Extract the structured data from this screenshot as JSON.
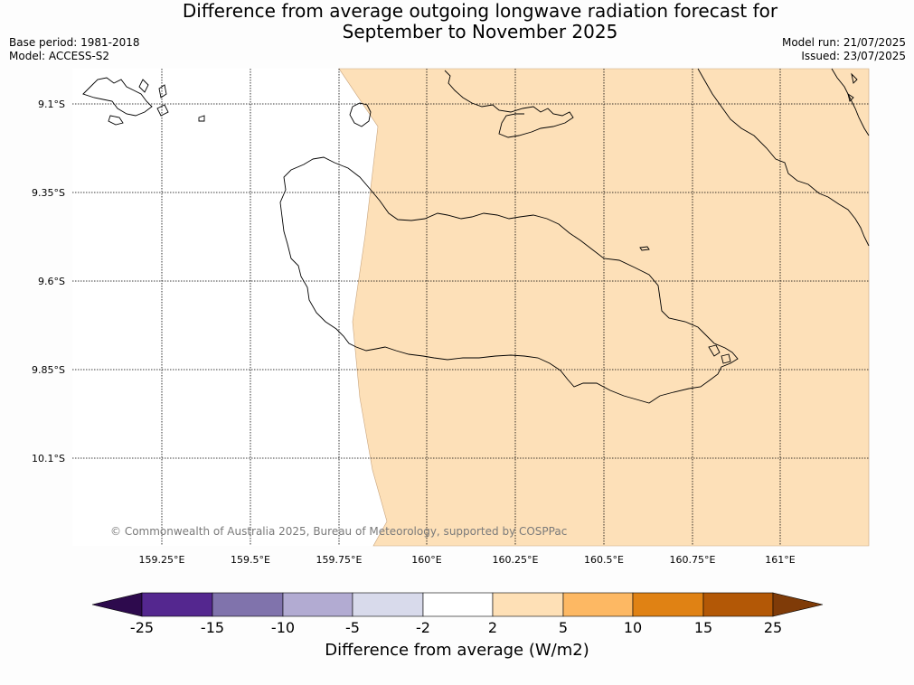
{
  "title_line1": "Difference from average outgoing longwave radiation forecast for",
  "title_line2": "September to November 2025",
  "base_period": "Base period: 1981-2018",
  "model": "Model: ACCESS-S2",
  "model_run": "Model run: 21/07/2025",
  "issued": "Issued: 23/07/2025",
  "copyright": "© Commonwealth of Australia 2025, Bureau of Meteorology, supported by COSPPac",
  "map": {
    "lat_labels": [
      "9.1°S",
      "9.35°S",
      "9.6°S",
      "9.85°S",
      "10.1°S"
    ],
    "lon_labels": [
      "159.25°E",
      "159.5°E",
      "159.75°E",
      "160°E",
      "160.25°E",
      "160.5°E",
      "160.75°E",
      "161°E"
    ],
    "anomaly_fill_color": "#fde0b8"
  },
  "colorbar": {
    "ticks": [
      "-25",
      "-15",
      "-10",
      "-5",
      "-2",
      "2",
      "5",
      "10",
      "15",
      "25"
    ],
    "colors": [
      "#2d0a4d",
      "#54278f",
      "#8073ac",
      "#b2abd2",
      "#d8daeb",
      "#ffffff",
      "#fee0b6",
      "#fdb863",
      "#e08214",
      "#b35806",
      "#7f3b08"
    ],
    "label": "Difference from average (W/m2)"
  }
}
